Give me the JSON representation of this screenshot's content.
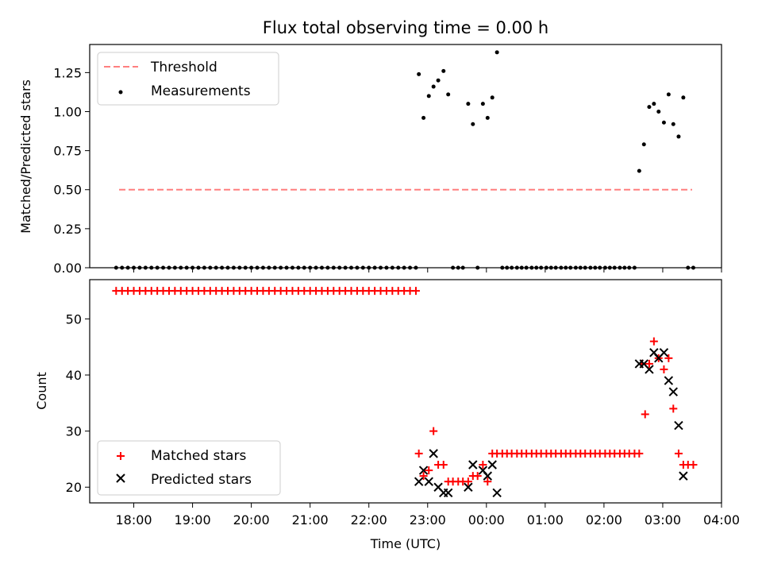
{
  "chart_data": [
    {
      "type": "scatter",
      "title": "Flux total observing time = 0.00 h",
      "xlabel": "",
      "ylabel": "Matched/Predicted stars",
      "x_unit": "hours",
      "xlim": [
        17.25,
        28.0
      ],
      "ylim": [
        0.0,
        1.43
      ],
      "yticks": [
        "0.00",
        "0.25",
        "0.50",
        "0.75",
        "1.00",
        "1.25"
      ],
      "ytick_values": [
        0.0,
        0.25,
        0.5,
        0.75,
        1.0,
        1.25
      ],
      "legend": {
        "placement": "upper-left",
        "entries": [
          "Threshold",
          "Measurements"
        ]
      },
      "series": [
        {
          "name": "Threshold",
          "kind": "dashed-line",
          "color": "#ff7f7f",
          "x": [
            17.75,
            27.5
          ],
          "y": [
            0.5,
            0.5
          ]
        },
        {
          "name": "Measurements",
          "kind": "dots",
          "color": "#000000",
          "points": [
            [
              17.7,
              0
            ],
            [
              17.8,
              0
            ],
            [
              17.9,
              0
            ],
            [
              18.0,
              0
            ],
            [
              18.1,
              0
            ],
            [
              18.2,
              0
            ],
            [
              18.3,
              0
            ],
            [
              18.4,
              0
            ],
            [
              18.5,
              0
            ],
            [
              18.6,
              0
            ],
            [
              18.7,
              0
            ],
            [
              18.8,
              0
            ],
            [
              18.9,
              0
            ],
            [
              19.0,
              0
            ],
            [
              19.1,
              0
            ],
            [
              19.2,
              0
            ],
            [
              19.3,
              0
            ],
            [
              19.4,
              0
            ],
            [
              19.5,
              0
            ],
            [
              19.6,
              0
            ],
            [
              19.7,
              0
            ],
            [
              19.8,
              0
            ],
            [
              19.9,
              0
            ],
            [
              20.0,
              0
            ],
            [
              20.1,
              0
            ],
            [
              20.2,
              0
            ],
            [
              20.3,
              0
            ],
            [
              20.4,
              0
            ],
            [
              20.5,
              0
            ],
            [
              20.6,
              0
            ],
            [
              20.7,
              0
            ],
            [
              20.8,
              0
            ],
            [
              20.9,
              0
            ],
            [
              21.0,
              0
            ],
            [
              21.1,
              0
            ],
            [
              21.2,
              0
            ],
            [
              21.3,
              0
            ],
            [
              21.4,
              0
            ],
            [
              21.5,
              0
            ],
            [
              21.6,
              0
            ],
            [
              21.7,
              0
            ],
            [
              21.8,
              0
            ],
            [
              21.9,
              0
            ],
            [
              22.0,
              0
            ],
            [
              22.1,
              0
            ],
            [
              22.2,
              0
            ],
            [
              22.3,
              0
            ],
            [
              22.4,
              0
            ],
            [
              22.5,
              0
            ],
            [
              22.6,
              0
            ],
            [
              22.7,
              0
            ],
            [
              22.8,
              0
            ],
            [
              22.85,
              1.24
            ],
            [
              22.93,
              0.96
            ],
            [
              23.02,
              1.1
            ],
            [
              23.1,
              1.16
            ],
            [
              23.18,
              1.2
            ],
            [
              23.27,
              1.26
            ],
            [
              23.35,
              1.11
            ],
            [
              23.43,
              0
            ],
            [
              23.52,
              0
            ],
            [
              23.6,
              0
            ],
            [
              23.69,
              1.05
            ],
            [
              23.77,
              0.92
            ],
            [
              23.85,
              0
            ],
            [
              23.94,
              1.05
            ],
            [
              24.02,
              0.96
            ],
            [
              24.1,
              1.09
            ],
            [
              24.18,
              1.38
            ],
            [
              24.27,
              0
            ],
            [
              24.35,
              0
            ],
            [
              24.43,
              0
            ],
            [
              24.52,
              0
            ],
            [
              24.6,
              0
            ],
            [
              24.68,
              0
            ],
            [
              24.77,
              0
            ],
            [
              24.85,
              0
            ],
            [
              24.93,
              0
            ],
            [
              25.02,
              0
            ],
            [
              25.1,
              0
            ],
            [
              25.18,
              0
            ],
            [
              25.27,
              0
            ],
            [
              25.35,
              0
            ],
            [
              25.43,
              0
            ],
            [
              25.52,
              0
            ],
            [
              25.6,
              0
            ],
            [
              25.68,
              0
            ],
            [
              25.77,
              0
            ],
            [
              25.85,
              0
            ],
            [
              25.93,
              0
            ],
            [
              26.02,
              0
            ],
            [
              26.1,
              0
            ],
            [
              26.18,
              0
            ],
            [
              26.27,
              0
            ],
            [
              26.35,
              0
            ],
            [
              26.43,
              0
            ],
            [
              26.52,
              0
            ],
            [
              26.6,
              0.62
            ],
            [
              26.68,
              0.79
            ],
            [
              26.77,
              1.03
            ],
            [
              26.85,
              1.05
            ],
            [
              26.93,
              1.0
            ],
            [
              27.02,
              0.93
            ],
            [
              27.1,
              1.11
            ],
            [
              27.18,
              0.92
            ],
            [
              27.27,
              0.84
            ],
            [
              27.35,
              1.09
            ],
            [
              27.43,
              0
            ],
            [
              27.52,
              0
            ]
          ]
        }
      ]
    },
    {
      "type": "scatter",
      "title": "",
      "xlabel": "Time (UTC)",
      "ylabel": "Count",
      "x_unit": "hours",
      "xlim": [
        17.25,
        28.0
      ],
      "ylim": [
        17.2,
        57.0
      ],
      "yticks": [
        "20",
        "30",
        "40",
        "50"
      ],
      "ytick_values": [
        20,
        30,
        40,
        50
      ],
      "xticks": [
        "18:00",
        "19:00",
        "20:00",
        "21:00",
        "22:00",
        "23:00",
        "00:00",
        "01:00",
        "02:00",
        "03:00",
        "04:00"
      ],
      "xtick_values": [
        18,
        19,
        20,
        21,
        22,
        23,
        24,
        25,
        26,
        27,
        28
      ],
      "legend": {
        "placement": "lower-left",
        "entries": [
          "Matched stars",
          "Predicted stars"
        ]
      },
      "series": [
        {
          "name": "Matched stars",
          "kind": "plus",
          "color": "#ff0000",
          "points": [
            [
              17.7,
              55
            ],
            [
              17.8,
              55
            ],
            [
              17.9,
              55
            ],
            [
              18.0,
              55
            ],
            [
              18.1,
              55
            ],
            [
              18.2,
              55
            ],
            [
              18.3,
              55
            ],
            [
              18.4,
              55
            ],
            [
              18.5,
              55
            ],
            [
              18.6,
              55
            ],
            [
              18.7,
              55
            ],
            [
              18.8,
              55
            ],
            [
              18.9,
              55
            ],
            [
              19.0,
              55
            ],
            [
              19.1,
              55
            ],
            [
              19.2,
              55
            ],
            [
              19.3,
              55
            ],
            [
              19.4,
              55
            ],
            [
              19.5,
              55
            ],
            [
              19.6,
              55
            ],
            [
              19.7,
              55
            ],
            [
              19.8,
              55
            ],
            [
              19.9,
              55
            ],
            [
              20.0,
              55
            ],
            [
              20.1,
              55
            ],
            [
              20.2,
              55
            ],
            [
              20.3,
              55
            ],
            [
              20.4,
              55
            ],
            [
              20.5,
              55
            ],
            [
              20.6,
              55
            ],
            [
              20.7,
              55
            ],
            [
              20.8,
              55
            ],
            [
              20.9,
              55
            ],
            [
              21.0,
              55
            ],
            [
              21.1,
              55
            ],
            [
              21.2,
              55
            ],
            [
              21.3,
              55
            ],
            [
              21.4,
              55
            ],
            [
              21.5,
              55
            ],
            [
              21.6,
              55
            ],
            [
              21.7,
              55
            ],
            [
              21.8,
              55
            ],
            [
              21.9,
              55
            ],
            [
              22.0,
              55
            ],
            [
              22.1,
              55
            ],
            [
              22.2,
              55
            ],
            [
              22.3,
              55
            ],
            [
              22.4,
              55
            ],
            [
              22.5,
              55
            ],
            [
              22.6,
              55
            ],
            [
              22.7,
              55
            ],
            [
              22.8,
              55
            ],
            [
              22.85,
              26
            ],
            [
              22.93,
              22
            ],
            [
              23.02,
              23
            ],
            [
              23.1,
              30
            ],
            [
              23.18,
              24
            ],
            [
              23.27,
              24
            ],
            [
              23.35,
              21
            ],
            [
              23.43,
              21
            ],
            [
              23.52,
              21
            ],
            [
              23.6,
              21
            ],
            [
              23.69,
              21
            ],
            [
              23.77,
              22
            ],
            [
              23.85,
              22
            ],
            [
              23.94,
              24
            ],
            [
              24.02,
              21
            ],
            [
              24.1,
              26
            ],
            [
              24.18,
              26
            ],
            [
              24.27,
              26
            ],
            [
              24.35,
              26
            ],
            [
              24.43,
              26
            ],
            [
              24.52,
              26
            ],
            [
              24.6,
              26
            ],
            [
              24.68,
              26
            ],
            [
              24.77,
              26
            ],
            [
              24.85,
              26
            ],
            [
              24.93,
              26
            ],
            [
              25.02,
              26
            ],
            [
              25.1,
              26
            ],
            [
              25.18,
              26
            ],
            [
              25.27,
              26
            ],
            [
              25.35,
              26
            ],
            [
              25.43,
              26
            ],
            [
              25.52,
              26
            ],
            [
              25.6,
              26
            ],
            [
              25.68,
              26
            ],
            [
              25.77,
              26
            ],
            [
              25.85,
              26
            ],
            [
              25.93,
              26
            ],
            [
              26.02,
              26
            ],
            [
              26.1,
              26
            ],
            [
              26.18,
              26
            ],
            [
              26.27,
              26
            ],
            [
              26.35,
              26
            ],
            [
              26.43,
              26
            ],
            [
              26.52,
              26
            ],
            [
              26.6,
              26
            ],
            [
              26.65,
              42
            ],
            [
              26.7,
              33
            ],
            [
              26.77,
              42
            ],
            [
              26.85,
              46
            ],
            [
              26.93,
              43
            ],
            [
              27.02,
              41
            ],
            [
              27.1,
              43
            ],
            [
              27.18,
              34
            ],
            [
              27.27,
              26
            ],
            [
              27.35,
              24
            ],
            [
              27.43,
              24
            ],
            [
              27.52,
              24
            ]
          ]
        },
        {
          "name": "Predicted stars",
          "kind": "cross",
          "color": "#000000",
          "points": [
            [
              22.85,
              21
            ],
            [
              22.93,
              23
            ],
            [
              23.02,
              21
            ],
            [
              23.1,
              26
            ],
            [
              23.18,
              20
            ],
            [
              23.27,
              19
            ],
            [
              23.35,
              19
            ],
            [
              23.69,
              20
            ],
            [
              23.77,
              24
            ],
            [
              23.94,
              23
            ],
            [
              24.02,
              22
            ],
            [
              24.1,
              24
            ],
            [
              24.18,
              19
            ],
            [
              26.6,
              42
            ],
            [
              26.68,
              42
            ],
            [
              26.77,
              41
            ],
            [
              26.85,
              44
            ],
            [
              26.93,
              43
            ],
            [
              27.02,
              44
            ],
            [
              27.1,
              39
            ],
            [
              27.18,
              37
            ],
            [
              27.27,
              31
            ],
            [
              27.35,
              22
            ]
          ]
        }
      ]
    }
  ]
}
